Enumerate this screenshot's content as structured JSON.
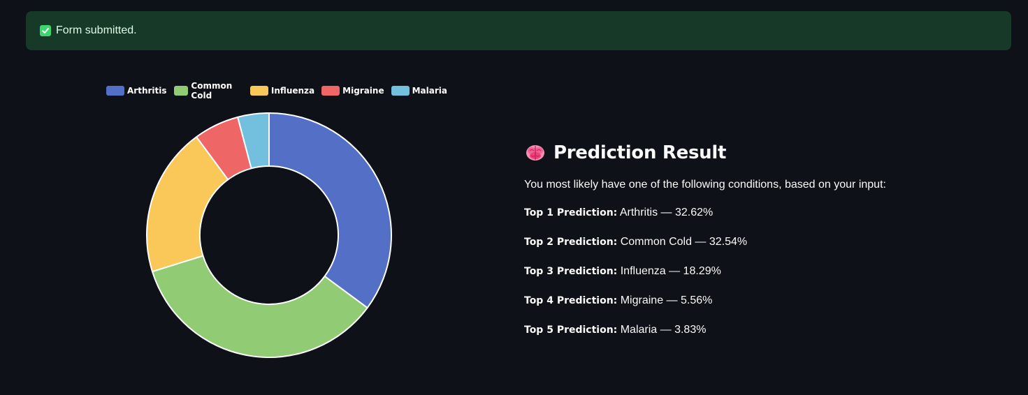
{
  "alert": {
    "text": "Form submitted.",
    "icon": "check-box-icon",
    "color": "#3dd56d"
  },
  "chart_data": {
    "type": "pie",
    "donut": true,
    "legend_position": "top-left",
    "categories": [
      "Arthritis",
      "Common Cold",
      "Influenza",
      "Migraine",
      "Malaria"
    ],
    "values": [
      32.62,
      32.54,
      18.29,
      5.56,
      3.83
    ],
    "colors": [
      "#5470c6",
      "#91cc75",
      "#fac858",
      "#ee6666",
      "#73c0de"
    ]
  },
  "result": {
    "icon": "brain-icon",
    "title": "Prediction Result",
    "intro": "You most likely have one of the following conditions, based on your input:",
    "predictions": [
      {
        "label": "Top 1 Prediction:",
        "text": "Arthritis — 32.62%"
      },
      {
        "label": "Top 2 Prediction:",
        "text": "Common Cold — 32.54%"
      },
      {
        "label": "Top 3 Prediction:",
        "text": "Influenza — 18.29%"
      },
      {
        "label": "Top 4 Prediction:",
        "text": "Migraine — 5.56%"
      },
      {
        "label": "Top 5 Prediction:",
        "text": "Malaria — 3.83%"
      }
    ]
  }
}
